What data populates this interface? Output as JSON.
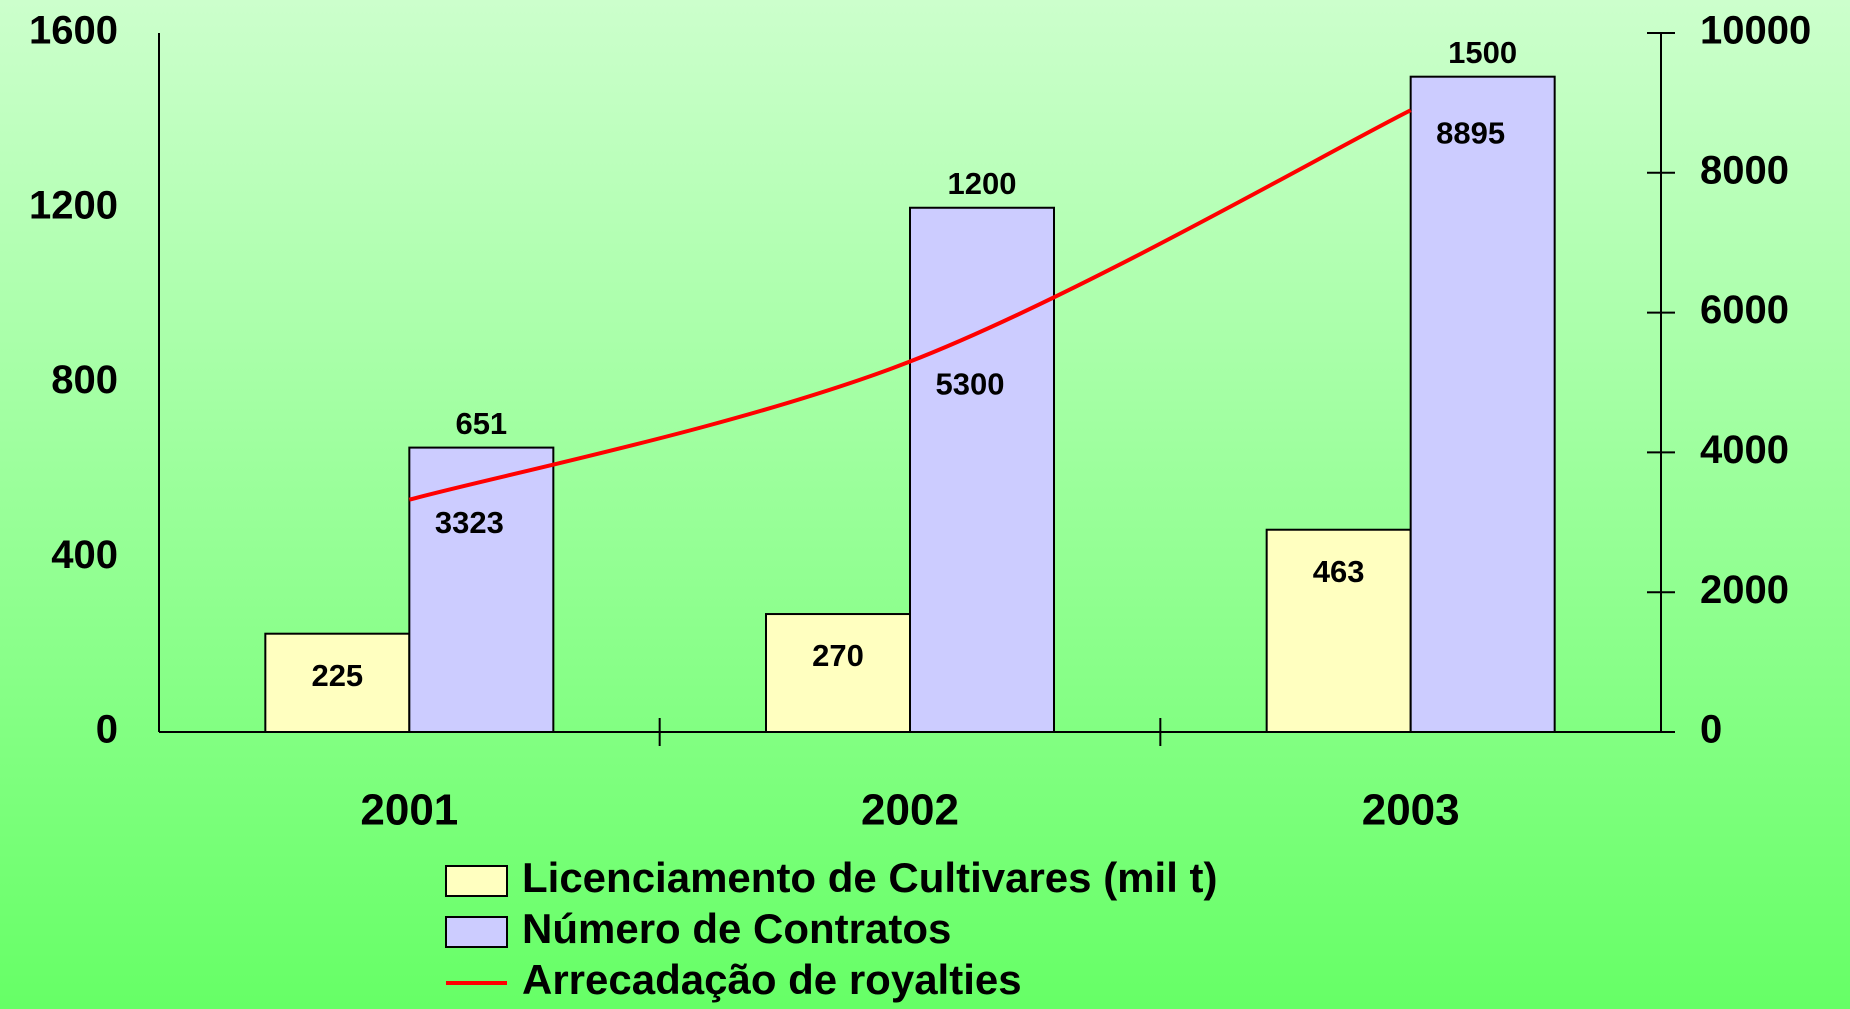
{
  "chart_data": {
    "type": "bar",
    "categories": [
      "2001",
      "2002",
      "2003"
    ],
    "series": [
      {
        "name": "Licenciamento de Cultivares (mil t)",
        "color": "#ffffc0",
        "values": [
          225,
          270,
          463
        ]
      },
      {
        "name": "Número de Contratos",
        "color": "#ccccff",
        "values": [
          651,
          1200,
          1500
        ]
      },
      {
        "name": "Arrecadação de royalties",
        "color": "#ff0000",
        "values": [
          3323,
          5300,
          8895
        ],
        "axis": "y2",
        "type": "line"
      }
    ],
    "ylim": [
      0,
      1600
    ],
    "yticks": [
      0,
      400,
      800,
      1200,
      1600
    ],
    "y2lim": [
      0,
      10000
    ],
    "y2ticks": [
      0,
      2000,
      4000,
      6000,
      8000,
      10000
    ],
    "grid": false,
    "legend": "bottom"
  }
}
